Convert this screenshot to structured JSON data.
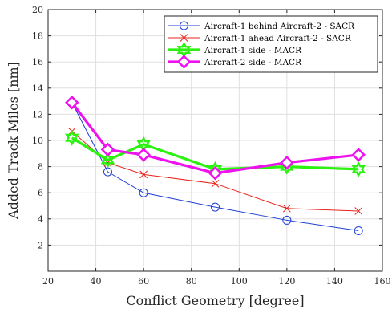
{
  "chart_data": {
    "type": "line",
    "xlabel": "Conflict Geometry [degree]",
    "ylabel": "Added Track Miles [nm]",
    "xlim": [
      20,
      160
    ],
    "ylim": [
      0,
      20
    ],
    "xticks": [
      20,
      40,
      60,
      80,
      100,
      120,
      140,
      160
    ],
    "yticks": [
      2,
      4,
      6,
      8,
      10,
      12,
      14,
      16,
      18,
      20
    ],
    "grid": true,
    "legend_position": "top-right",
    "x": [
      30,
      45,
      60,
      90,
      120,
      150
    ],
    "series": [
      {
        "name": "Aircraft-1 behind Aircraft-2 - SACR",
        "values": [
          12.9,
          7.6,
          6.0,
          4.9,
          3.9,
          3.1
        ],
        "color": "#1f3fd6",
        "marker": "circle"
      },
      {
        "name": "Aircraft-1 ahead Aircraft-2 - SACR",
        "values": [
          10.7,
          8.3,
          7.4,
          6.7,
          4.8,
          4.6
        ],
        "color": "#e8231b",
        "marker": "x"
      },
      {
        "name": "Aircraft-1 side - MACR",
        "values": [
          10.2,
          8.5,
          9.7,
          7.8,
          8.0,
          7.8
        ],
        "color": "#2bf20f",
        "marker": "hexagram"
      },
      {
        "name": "Aircraft-2 side - MACR",
        "values": [
          12.9,
          9.3,
          8.9,
          7.5,
          8.3,
          8.9
        ],
        "color": "#ee13ee",
        "marker": "diamond"
      }
    ]
  }
}
